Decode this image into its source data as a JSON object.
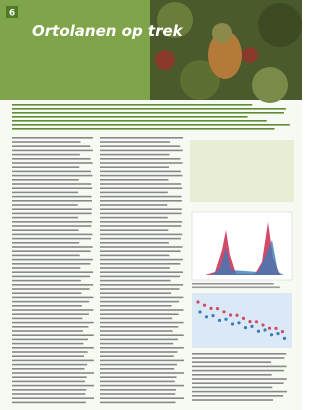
{
  "header": {
    "page_number": "6",
    "title": "Ortolanen op trek"
  }
}
